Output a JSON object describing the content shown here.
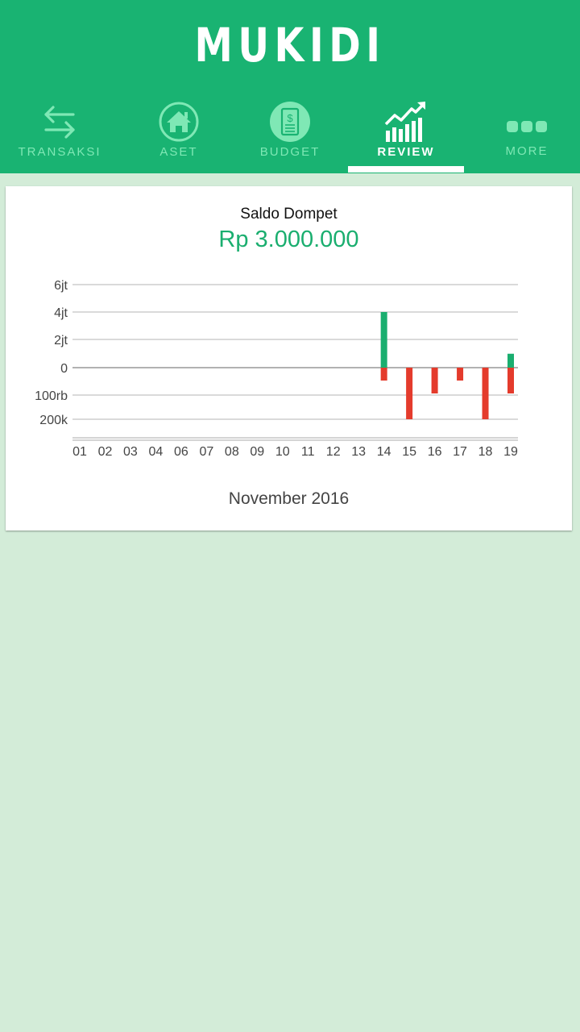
{
  "app": {
    "title": "MUKIDI"
  },
  "tabs": [
    {
      "label": "TRANSAKSI",
      "icon": "transfer-arrows-icon"
    },
    {
      "label": "ASET",
      "icon": "house-icon"
    },
    {
      "label": "BUDGET",
      "icon": "budget-dollar-icon"
    },
    {
      "label": "REVIEW",
      "icon": "trend-chart-icon",
      "active": true
    },
    {
      "label": "MORE",
      "icon": "more-dots-icon"
    }
  ],
  "colors": {
    "brand": "#19b372",
    "tab_inactive": "#7fe8b5",
    "positive": "#1aae6f",
    "negative": "#e43b2c",
    "background": "#d3ecd8"
  },
  "card": {
    "title": "Saldo Dompet",
    "amount": "Rp 3.000.000",
    "month": "November 2016"
  },
  "chart_data": {
    "type": "bar",
    "categories": [
      "01",
      "02",
      "03",
      "04",
      "06",
      "07",
      "08",
      "09",
      "10",
      "11",
      "12",
      "13",
      "14",
      "15",
      "16",
      "17",
      "18",
      "19"
    ],
    "y_tick_labels": [
      "6jt",
      "4jt",
      "2jt",
      "0",
      "100rb",
      "200k"
    ],
    "grid": true,
    "series": [
      {
        "values": [
          0,
          0,
          0,
          0,
          0,
          0,
          0,
          0,
          0,
          0,
          0,
          0,
          4000000,
          0,
          0,
          0,
          0,
          1000000
        ]
      },
      {
        "values": [
          0,
          0,
          0,
          0,
          0,
          0,
          0,
          0,
          0,
          0,
          0,
          0,
          -50000,
          -200000,
          -100000,
          -50000,
          -200000,
          -100000
        ]
      }
    ]
  }
}
